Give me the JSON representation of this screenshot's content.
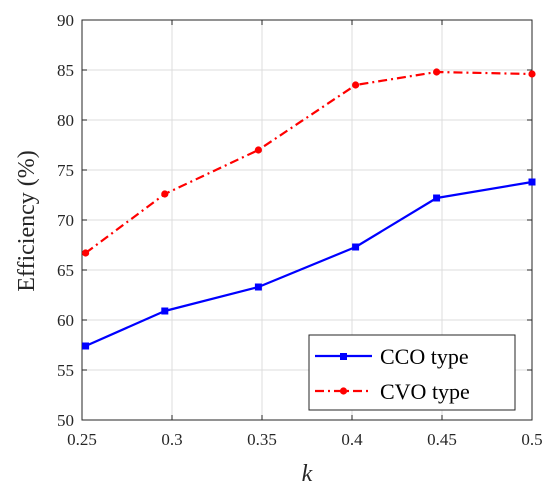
{
  "chart_data": {
    "type": "line",
    "xlabel": "k",
    "ylabel": "Efficiency (%)",
    "xlim": [
      0.25,
      0.5
    ],
    "ylim": [
      50,
      90
    ],
    "xticks": [
      0.25,
      0.3,
      0.35,
      0.4,
      0.45,
      0.5
    ],
    "xtick_labels": [
      "0.25",
      "0.3",
      "0.35",
      "0.4",
      "0.45",
      "0.5"
    ],
    "yticks": [
      50,
      55,
      60,
      65,
      70,
      75,
      80,
      85,
      90
    ],
    "ytick_labels": [
      "50",
      "55",
      "60",
      "65",
      "70",
      "75",
      "80",
      "85",
      "90"
    ],
    "grid": true,
    "legend_position": "bottom-right",
    "series": [
      {
        "name": "CCO type",
        "color": "#0000ff",
        "line_style": "solid",
        "marker": "square",
        "x": [
          0.252,
          0.296,
          0.348,
          0.402,
          0.447,
          0.5
        ],
        "y": [
          57.4,
          60.9,
          63.3,
          67.3,
          72.2,
          73.8
        ]
      },
      {
        "name": "CVO type",
        "color": "#ff0000",
        "line_style": "dash-dot",
        "marker": "circle",
        "x": [
          0.252,
          0.296,
          0.348,
          0.402,
          0.447,
          0.5
        ],
        "y": [
          66.7,
          72.6,
          77.0,
          83.5,
          84.8,
          84.6
        ]
      }
    ]
  }
}
